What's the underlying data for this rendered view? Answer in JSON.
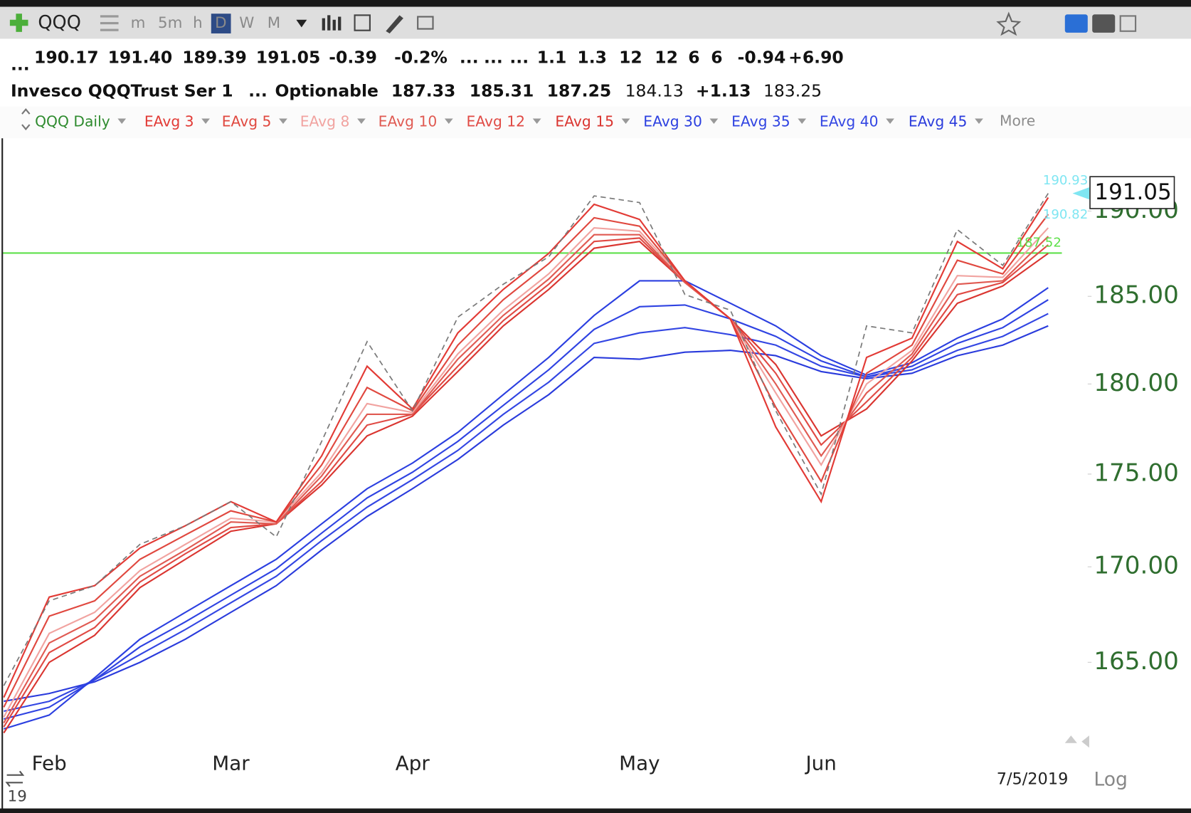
{
  "toolbar": {
    "symbol": "QQQ",
    "periods": [
      "m",
      "5m",
      "h",
      "D",
      "W",
      "M"
    ]
  },
  "quote": {
    "line1": [
      "...",
      "190.17",
      "191.40",
      "189.39",
      "191.05",
      "-0.39",
      "-0.2%",
      "...",
      "...",
      "...",
      "1.1",
      "1.3",
      "12",
      "12",
      "6",
      "6",
      "-0.94",
      "+6.90"
    ],
    "line2": [
      "Invesco QQQTrust Ser 1",
      "...",
      "Optionable",
      "187.33",
      "185.31",
      "187.25",
      "184.13",
      "+1.13",
      "183.25"
    ]
  },
  "legend_more": "More",
  "footer": {
    "date": "7/5/2019",
    "scale": "Log",
    "year_stub": "19"
  },
  "chart_data": {
    "type": "line",
    "log_scale": true,
    "grid": false,
    "categories": [
      null,
      "Feb",
      null,
      null,
      null,
      "Mar",
      null,
      null,
      null,
      "Apr",
      null,
      null,
      null,
      null,
      "May",
      null,
      null,
      null,
      "Jun",
      null,
      null,
      null,
      null,
      null
    ],
    "ylim": [
      161,
      194
    ],
    "yticks": [
      {
        "value": 165,
        "label": "165.00"
      },
      {
        "value": 170,
        "label": "170.00"
      },
      {
        "value": 175,
        "label": "175.00"
      },
      {
        "value": 180,
        "label": "180.00"
      },
      {
        "value": 185,
        "label": "185.00"
      },
      {
        "value": 190,
        "label": "190.00"
      }
    ],
    "last_price": 191.05,
    "markers": [
      190.93,
      190.82
    ],
    "hline": {
      "value": 187.52,
      "color": "#5ee04a"
    },
    "series": [
      {
        "name": "QQQ Daily",
        "color": "#7a7a7a",
        "line_style": "dashed",
        "values": [
          163.8,
          168.2,
          169.0,
          171.2,
          172.2,
          173.5,
          171.6,
          176.8,
          182.4,
          178.5,
          183.8,
          185.7,
          187.3,
          190.9,
          190.5,
          185.1,
          184.2,
          178.5,
          173.9,
          183.3,
          182.9,
          188.9,
          186.8,
          191.05
        ]
      },
      {
        "name": "EAvg 3",
        "color": "#e23a35",
        "values": [
          163.2,
          168.4,
          169.0,
          171.0,
          172.2,
          173.5,
          172.4,
          176.0,
          181.0,
          178.6,
          182.9,
          185.4,
          187.5,
          190.4,
          189.5,
          185.9,
          183.7,
          177.6,
          173.5,
          181.5,
          182.6,
          188.2,
          186.6,
          190.8
        ]
      },
      {
        "name": "EAvg 5",
        "color": "#e0483f",
        "values": [
          162.7,
          167.4,
          168.2,
          170.4,
          171.7,
          173.0,
          172.4,
          175.5,
          179.8,
          178.5,
          182.2,
          184.8,
          186.9,
          189.6,
          189.1,
          185.9,
          183.7,
          178.7,
          174.6,
          180.6,
          182.2,
          187.1,
          186.3,
          189.8
        ]
      },
      {
        "name": "EAvg 8",
        "color": "#f1a3a0",
        "values": [
          162.2,
          166.5,
          167.6,
          169.8,
          171.2,
          172.6,
          172.4,
          175.1,
          178.9,
          178.4,
          181.7,
          184.2,
          186.3,
          189.0,
          188.8,
          185.9,
          183.7,
          179.5,
          175.5,
          180.0,
          181.9,
          186.2,
          186.1,
          189.0
        ]
      },
      {
        "name": "EAvg 10",
        "color": "#e05a52",
        "values": [
          161.9,
          166.0,
          167.2,
          169.5,
          170.9,
          172.4,
          172.3,
          174.9,
          178.3,
          178.3,
          181.4,
          183.9,
          186.0,
          188.6,
          188.6,
          185.8,
          183.7,
          180.0,
          176.0,
          179.5,
          181.7,
          185.7,
          185.9,
          188.5
        ]
      },
      {
        "name": "EAvg 12",
        "color": "#e04a44",
        "values": [
          161.7,
          165.5,
          166.8,
          169.2,
          170.7,
          172.1,
          172.3,
          174.6,
          177.7,
          178.3,
          181.0,
          183.6,
          185.7,
          188.2,
          188.4,
          185.8,
          183.7,
          180.6,
          176.6,
          179.0,
          181.5,
          185.1,
          185.8,
          188.0
        ]
      },
      {
        "name": "EAvg 15",
        "color": "#da3530",
        "values": [
          161.4,
          165.0,
          166.4,
          168.9,
          170.4,
          171.9,
          172.3,
          174.4,
          177.1,
          178.2,
          180.7,
          183.3,
          185.4,
          187.8,
          188.2,
          185.8,
          183.7,
          181.1,
          177.1,
          178.6,
          181.3,
          184.6,
          185.6,
          187.5
        ]
      },
      {
        "name": "EAvg 30",
        "color": "#2b3fe0",
        "values": [
          161.6,
          162.3,
          164.2,
          166.2,
          167.6,
          169.0,
          170.4,
          172.3,
          174.2,
          175.6,
          177.3,
          179.4,
          181.5,
          183.9,
          185.9,
          185.9,
          184.6,
          183.3,
          181.6,
          180.5,
          181.2,
          182.6,
          183.7,
          185.5
        ]
      },
      {
        "name": "EAvg 35",
        "color": "#2f43e2",
        "values": [
          162.1,
          162.7,
          164.1,
          165.8,
          167.1,
          168.5,
          169.9,
          171.8,
          173.7,
          175.1,
          176.8,
          178.8,
          180.8,
          183.1,
          184.4,
          184.5,
          183.7,
          182.7,
          181.3,
          180.4,
          181.0,
          182.3,
          183.2,
          184.8
        ]
      },
      {
        "name": "EAvg 40",
        "color": "#3346e3",
        "values": [
          162.5,
          163.0,
          164.1,
          165.4,
          166.7,
          168.1,
          169.5,
          171.4,
          173.2,
          174.7,
          176.3,
          178.3,
          180.1,
          182.3,
          182.9,
          183.2,
          182.8,
          182.2,
          181.0,
          180.4,
          180.8,
          181.9,
          182.7,
          184.0
        ]
      },
      {
        "name": "EAvg 45",
        "color": "#2a3bdc",
        "values": [
          163.0,
          163.4,
          164.0,
          165.0,
          166.2,
          167.6,
          169.0,
          170.9,
          172.7,
          174.2,
          175.8,
          177.7,
          179.4,
          181.5,
          181.4,
          181.8,
          181.9,
          181.6,
          180.7,
          180.3,
          180.6,
          181.6,
          182.2,
          183.3
        ]
      }
    ]
  }
}
